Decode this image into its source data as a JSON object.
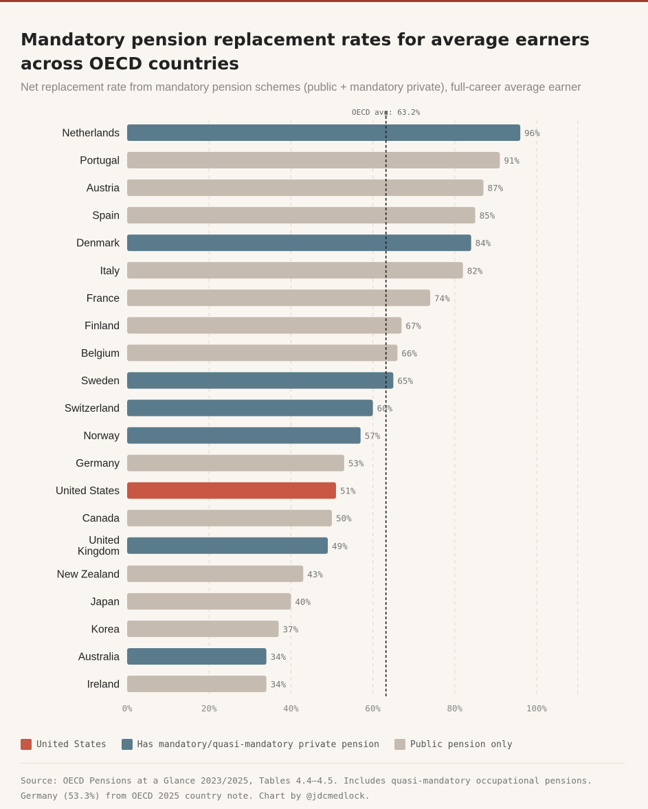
{
  "header": {
    "title": "Mandatory pension replacement rates for average earners across OECD countries",
    "subtitle": "Net replacement rate from mandatory pension schemes (public + mandatory private), full-career average earner"
  },
  "colors": {
    "us": "#c85743",
    "private": "#5a7b8b",
    "public": "#c5bbb0",
    "reference_line": "#222222",
    "grid": "#e3dcd2",
    "accent_bar": "#a33c2c"
  },
  "chart_data": {
    "type": "bar",
    "orientation": "horizontal",
    "title": "Mandatory pension replacement rates for average earners across OECD countries",
    "xlabel": "",
    "ylabel": "",
    "xlim": [
      0,
      110
    ],
    "x_ticks": [
      0,
      20,
      40,
      60,
      80,
      100
    ],
    "x_tick_labels": [
      "0%",
      "20%",
      "40%",
      "60%",
      "80%",
      "100%"
    ],
    "grid": true,
    "reference_line": {
      "value": 63.2,
      "label": "OECD avg: 63.2%"
    },
    "categories": [
      "Netherlands",
      "Portugal",
      "Austria",
      "Spain",
      "Denmark",
      "Italy",
      "France",
      "Finland",
      "Belgium",
      "Sweden",
      "Switzerland",
      "Norway",
      "Germany",
      "United States",
      "Canada",
      "United Kingdom",
      "New Zealand",
      "Japan",
      "Korea",
      "Australia",
      "Ireland"
    ],
    "category_lines": [
      [
        "Netherlands"
      ],
      [
        "Portugal"
      ],
      [
        "Austria"
      ],
      [
        "Spain"
      ],
      [
        "Denmark"
      ],
      [
        "Italy"
      ],
      [
        "France"
      ],
      [
        "Finland"
      ],
      [
        "Belgium"
      ],
      [
        "Sweden"
      ],
      [
        "Switzerland"
      ],
      [
        "Norway"
      ],
      [
        "Germany"
      ],
      [
        "United States"
      ],
      [
        "Canada"
      ],
      [
        "United",
        "Kingdom"
      ],
      [
        "New Zealand"
      ],
      [
        "Japan"
      ],
      [
        "Korea"
      ],
      [
        "Australia"
      ],
      [
        "Ireland"
      ]
    ],
    "values": [
      96,
      91,
      87,
      85,
      84,
      82,
      74,
      67,
      66,
      65,
      60,
      57,
      53,
      51,
      50,
      49,
      43,
      40,
      37,
      34,
      34
    ],
    "value_labels": [
      "96%",
      "91%",
      "87%",
      "85%",
      "84%",
      "82%",
      "74%",
      "67%",
      "66%",
      "65%",
      "60%",
      "57%",
      "53%",
      "51%",
      "50%",
      "49%",
      "43%",
      "40%",
      "37%",
      "34%",
      "34%"
    ],
    "groups": [
      "private",
      "public",
      "public",
      "public",
      "private",
      "public",
      "public",
      "public",
      "public",
      "private",
      "private",
      "private",
      "public",
      "us",
      "public",
      "private",
      "public",
      "public",
      "public",
      "private",
      "public"
    ],
    "legend": [
      {
        "key": "us",
        "label": "United States"
      },
      {
        "key": "private",
        "label": "Has mandatory/quasi-mandatory private pension"
      },
      {
        "key": "public",
        "label": "Public pension only"
      }
    ]
  },
  "footer": {
    "source": "Source: OECD Pensions at a Glance 2023/2025, Tables 4.4–4.5. Includes quasi-mandatory occupational pensions. Germany (53.3%) from OECD 2025 country note. Chart by @jdcmedlock."
  }
}
